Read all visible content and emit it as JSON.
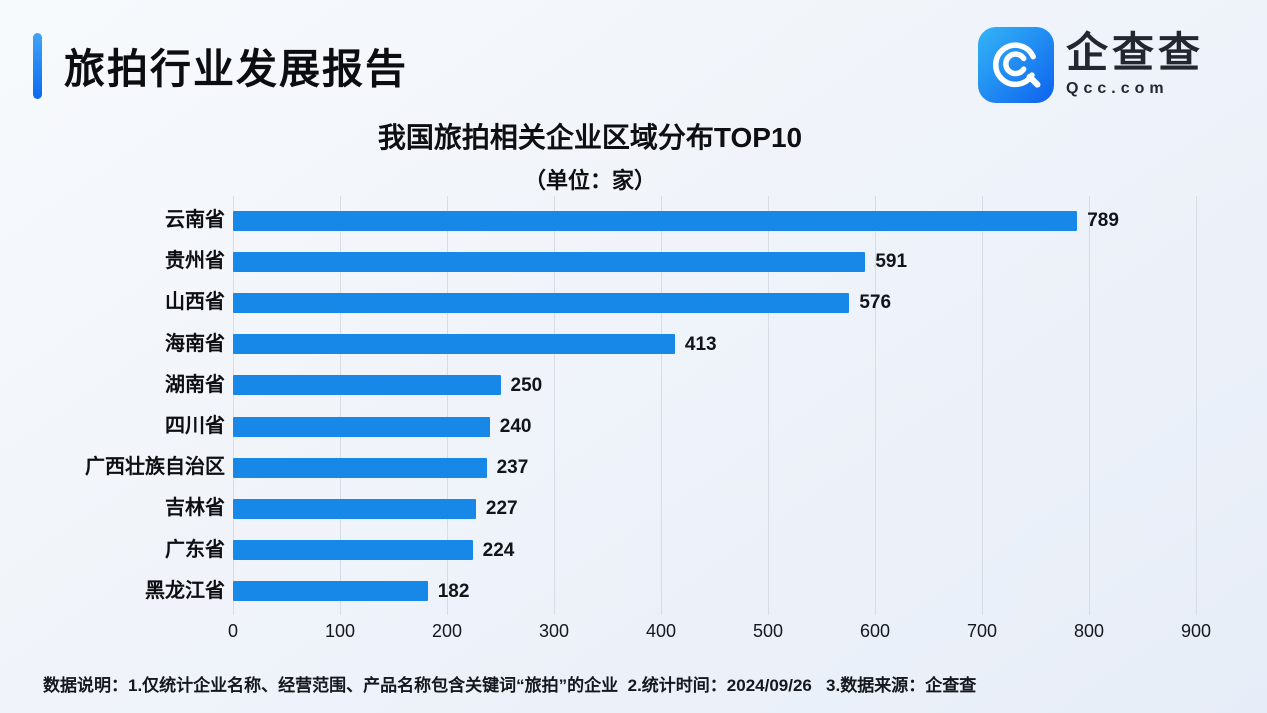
{
  "header": {
    "title": "旅拍行业发展报告"
  },
  "brand": {
    "name": "企查查",
    "domain": "Qcc.com",
    "icon": "qcc-magnifier-icon",
    "icon_gradient": [
      "#33b5f6",
      "#0e62ee"
    ]
  },
  "chart_data": {
    "type": "bar",
    "orientation": "horizontal",
    "title": "我国旅拍相关企业区域分布TOP10",
    "subtitle": "（单位：家）",
    "categories": [
      "云南省",
      "贵州省",
      "山西省",
      "海南省",
      "湖南省",
      "四川省",
      "广西壮族自治区",
      "吉林省",
      "广东省",
      "黑龙江省"
    ],
    "values": [
      789,
      591,
      576,
      413,
      250,
      240,
      237,
      227,
      224,
      182
    ],
    "xlim": [
      0,
      900
    ],
    "xticks": [
      0,
      100,
      200,
      300,
      400,
      500,
      600,
      700,
      800,
      900
    ],
    "grid": "vertical",
    "legend": "none",
    "bar_color": "#1787e8"
  },
  "footer": {
    "note": "数据说明：1.仅统计企业名称、经营范围、产品名称包含关键词“旅拍”的企业  2.统计时间：2024/09/26   3.数据来源：企查查"
  },
  "colors": {
    "accent_blue": "#0b6af0",
    "bar_blue": "#1787e8",
    "gridline": "#d7dce5",
    "background": "#eef3fa",
    "text_dark": "#0d0f12"
  }
}
